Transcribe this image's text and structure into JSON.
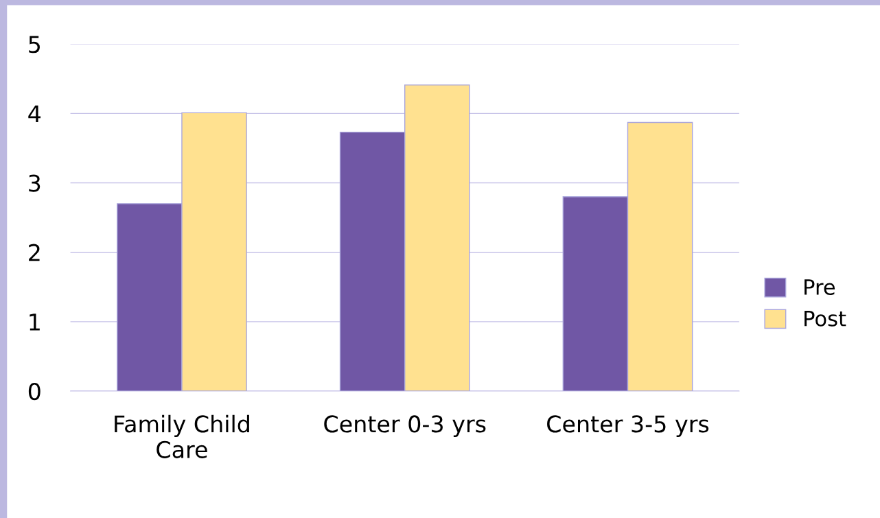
{
  "chart_data": {
    "type": "bar",
    "categories": [
      "Family Child\nCare",
      "Center 0-3 yrs",
      "Center 3-5 yrs"
    ],
    "series": [
      {
        "name": "Pre",
        "color": "#7057a5",
        "values": [
          2.7,
          3.73,
          2.8
        ]
      },
      {
        "name": "Post",
        "color": "#ffe190",
        "values": [
          4.01,
          4.41,
          3.87
        ]
      }
    ],
    "ylim": [
      0,
      5
    ],
    "yticks": [
      0,
      1,
      2,
      3,
      4,
      5
    ],
    "grid": "y",
    "legend": "right"
  }
}
